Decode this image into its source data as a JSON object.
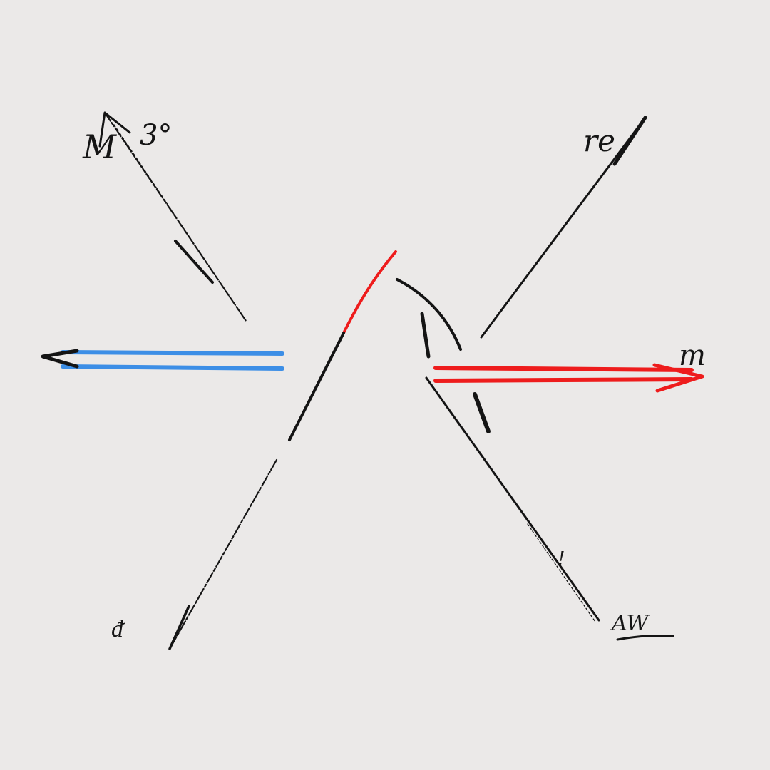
{
  "diagram": {
    "colors": {
      "background": "#ebe9e8",
      "ink": "#141414",
      "blue": "#3c8ee6",
      "red": "#ee1c1c"
    },
    "labels": {
      "top_left": "M",
      "top_left_angle": "3°",
      "top_right": "re",
      "right": "m",
      "bottom_left": "ᵭ",
      "bottom_right": "AW",
      "tick_mark": "!"
    }
  }
}
